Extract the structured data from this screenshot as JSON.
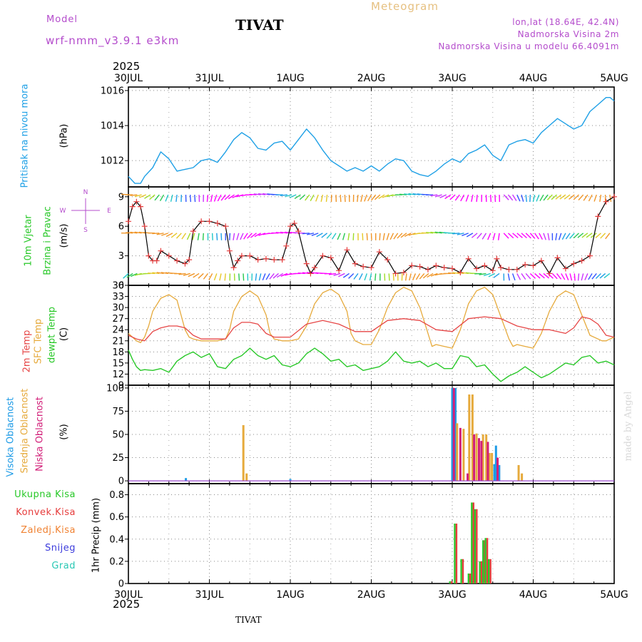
{
  "header": {
    "model_label": "Model",
    "model_name": "wrf-nmm_v3.9.1 e3km",
    "station": "TIVAT",
    "meteogram": "Meteogram",
    "lonlat": "lon,lat (18.64E, 42.4N)",
    "elev": "Nadmorska Visina 2m",
    "elev_model": "Nadmorska Visina u modelu 66.4091m",
    "footer_station": "TIVAT",
    "watermark": "made by Angel",
    "year_top": "2025",
    "year_bottom": "2025"
  },
  "colors": {
    "pressure": "#1ea0e6",
    "temp2m": "#e64646",
    "sfc": "#e6aa3c",
    "dewpt": "#28c828",
    "high": "#1e9be6",
    "mid": "#e6aa3c",
    "low": "#d21e78",
    "total": "#28c828",
    "conv": "#e63c3c",
    "frozen": "#f08232",
    "snow": "#3c3cdc",
    "graupel": "#28c8b4",
    "wind_speed": "#000000",
    "wind_marker": "#e63c3c",
    "label_purple": "#b44ccc"
  },
  "chart_data": [
    {
      "type": "line",
      "title": "Pritisak na nivou mora",
      "ylabel": "(hPa)",
      "x_ticks": [
        "30JUL",
        "31JUL",
        "1AUG",
        "2AUG",
        "3AUG",
        "4AUG",
        "5AUG"
      ],
      "xlim": [
        0,
        6
      ],
      "ylim": [
        1010.5,
        1016.2
      ],
      "yticks": [
        1012,
        1014,
        1016
      ],
      "series": [
        {
          "name": "Pritisak",
          "x": [
            0,
            0.08,
            0.15,
            0.2,
            0.3,
            0.4,
            0.5,
            0.6,
            0.7,
            0.8,
            0.9,
            1.0,
            1.1,
            1.2,
            1.3,
            1.4,
            1.5,
            1.6,
            1.7,
            1.8,
            1.9,
            2.0,
            2.1,
            2.2,
            2.3,
            2.4,
            2.5,
            2.6,
            2.7,
            2.8,
            2.9,
            3.0,
            3.1,
            3.2,
            3.3,
            3.4,
            3.5,
            3.6,
            3.7,
            3.8,
            3.9,
            4.0,
            4.1,
            4.2,
            4.3,
            4.4,
            4.5,
            4.6,
            4.7,
            4.8,
            4.9,
            5.0,
            5.1,
            5.2,
            5.3,
            5.4,
            5.5,
            5.6,
            5.7,
            5.8,
            5.9,
            5.95,
            6.0
          ],
          "values": [
            1011.1,
            1010.7,
            1010.7,
            1011.1,
            1011.6,
            1012.5,
            1012.1,
            1011.4,
            1011.5,
            1011.6,
            1012.0,
            1012.1,
            1011.9,
            1012.5,
            1013.2,
            1013.6,
            1013.3,
            1012.7,
            1012.6,
            1013.0,
            1013.1,
            1012.6,
            1013.2,
            1013.8,
            1013.3,
            1012.6,
            1012.0,
            1011.7,
            1011.4,
            1011.6,
            1011.4,
            1011.7,
            1011.4,
            1011.8,
            1012.1,
            1012.0,
            1011.4,
            1011.2,
            1011.1,
            1011.4,
            1011.8,
            1012.1,
            1011.9,
            1012.4,
            1012.6,
            1012.9,
            1012.3,
            1012.0,
            1012.9,
            1013.1,
            1013.2,
            1013.0,
            1013.6,
            1014.0,
            1014.4,
            1014.1,
            1013.8,
            1014.0,
            1014.8,
            1015.2,
            1015.6,
            1015.6,
            1015.4
          ]
        }
      ]
    },
    {
      "type": "line",
      "title": "10m Vjetar Brzina i Pravac",
      "ylabel": "(m/s)",
      "xlim": [
        0,
        6
      ],
      "ylim": [
        0,
        10
      ],
      "yticks": [
        0,
        3,
        6,
        9
      ],
      "compass": [
        "N",
        "W",
        "E",
        "S"
      ],
      "series": [
        {
          "name": "Brzina",
          "x": [
            0,
            0.05,
            0.1,
            0.15,
            0.2,
            0.25,
            0.3,
            0.35,
            0.4,
            0.5,
            0.6,
            0.7,
            0.75,
            0.8,
            0.9,
            1.0,
            1.1,
            1.2,
            1.25,
            1.3,
            1.35,
            1.4,
            1.5,
            1.6,
            1.7,
            1.8,
            1.9,
            1.95,
            2.0,
            2.05,
            2.1,
            2.2,
            2.25,
            2.3,
            2.4,
            2.5,
            2.6,
            2.7,
            2.8,
            2.9,
            3.0,
            3.1,
            3.2,
            3.3,
            3.4,
            3.5,
            3.6,
            3.7,
            3.8,
            3.9,
            4.0,
            4.1,
            4.2,
            4.3,
            4.4,
            4.5,
            4.55,
            4.6,
            4.7,
            4.8,
            4.9,
            5.0,
            5.1,
            5.2,
            5.3,
            5.4,
            5.5,
            5.6,
            5.7,
            5.8,
            5.9,
            6.0
          ],
          "values": [
            6.5,
            8.0,
            8.5,
            8.0,
            6.0,
            3.0,
            2.5,
            2.5,
            3.5,
            3.0,
            2.5,
            2.2,
            2.6,
            5.5,
            6.5,
            6.5,
            6.3,
            6.0,
            3.5,
            1.8,
            2.5,
            3.0,
            3.0,
            2.6,
            2.7,
            2.6,
            2.6,
            4.0,
            6.0,
            6.3,
            5.5,
            2.2,
            1.2,
            1.8,
            3.0,
            2.8,
            1.5,
            3.6,
            2.2,
            1.9,
            1.8,
            3.4,
            2.6,
            1.2,
            1.3,
            2.0,
            1.9,
            1.6,
            2.0,
            1.8,
            1.7,
            1.3,
            2.7,
            1.7,
            2.0,
            1.5,
            2.7,
            1.8,
            1.6,
            1.6,
            2.1,
            2.0,
            2.5,
            1.2,
            2.8,
            1.7,
            2.2,
            2.5,
            3.0,
            7.0,
            8.5,
            9.0
          ]
        }
      ]
    },
    {
      "type": "line",
      "title": "2m Temp / SFC Temp / dewpt Temp",
      "ylabel": "(C)",
      "xlim": [
        0,
        6
      ],
      "ylim": [
        9,
        36
      ],
      "yticks": [
        9,
        12,
        15,
        18,
        21,
        24,
        27,
        30,
        33,
        36
      ],
      "series": [
        {
          "name": "2m Temp",
          "x": [
            0,
            0.1,
            0.2,
            0.3,
            0.4,
            0.5,
            0.6,
            0.7,
            0.8,
            0.9,
            1.0,
            1.2,
            1.3,
            1.4,
            1.5,
            1.6,
            1.7,
            1.8,
            1.9,
            2.0,
            2.2,
            2.4,
            2.6,
            2.8,
            3.0,
            3.2,
            3.4,
            3.6,
            3.8,
            4.0,
            4.2,
            4.4,
            4.6,
            4.8,
            5.0,
            5.2,
            5.4,
            5.5,
            5.6,
            5.7,
            5.8,
            5.9,
            6.0
          ],
          "values": [
            22.5,
            21.5,
            21.0,
            23.5,
            24.5,
            25.0,
            25.0,
            24.5,
            22.5,
            21.5,
            21.5,
            21.5,
            24.5,
            26.0,
            26.0,
            25.5,
            23.0,
            22.0,
            22.0,
            22.0,
            25.5,
            26.5,
            25.5,
            23.5,
            23.5,
            26.5,
            27.0,
            26.5,
            24.0,
            23.5,
            27.0,
            27.5,
            27.0,
            25.0,
            24.0,
            24.0,
            23.0,
            24.5,
            27.5,
            27.0,
            25.5,
            22.5,
            22.0
          ]
        },
        {
          "name": "SFC Temp",
          "x": [
            0,
            0.1,
            0.15,
            0.2,
            0.25,
            0.3,
            0.4,
            0.5,
            0.6,
            0.65,
            0.7,
            0.75,
            0.8,
            0.9,
            1.0,
            1.1,
            1.2,
            1.25,
            1.3,
            1.4,
            1.5,
            1.6,
            1.7,
            1.75,
            1.8,
            1.9,
            2.0,
            2.1,
            2.2,
            2.3,
            2.4,
            2.5,
            2.6,
            2.7,
            2.75,
            2.8,
            2.9,
            3.0,
            3.1,
            3.2,
            3.3,
            3.4,
            3.5,
            3.6,
            3.7,
            3.75,
            3.8,
            3.9,
            4.0,
            4.1,
            4.2,
            4.3,
            4.4,
            4.5,
            4.6,
            4.7,
            4.75,
            4.8,
            4.9,
            5.0,
            5.1,
            5.2,
            5.3,
            5.4,
            5.5,
            5.6,
            5.7,
            5.8,
            5.85,
            5.9,
            6.0
          ],
          "values": [
            23.0,
            21.0,
            20.5,
            22.0,
            25.0,
            29.0,
            32.5,
            33.5,
            32.0,
            28.0,
            24.0,
            22.0,
            21.5,
            21.0,
            21.0,
            21.0,
            21.5,
            24.0,
            29.0,
            33.0,
            34.5,
            33.0,
            28.0,
            23.0,
            21.5,
            21.0,
            21.0,
            21.5,
            25.0,
            31.0,
            34.0,
            35.0,
            33.5,
            29.0,
            23.0,
            21.0,
            20.0,
            20.0,
            24.0,
            30.0,
            34.0,
            35.5,
            34.5,
            30.0,
            23.0,
            19.5,
            20.0,
            19.5,
            19.0,
            24.0,
            31.0,
            34.5,
            35.5,
            33.5,
            27.5,
            21.5,
            19.5,
            20.0,
            19.5,
            19.0,
            23.0,
            29.0,
            33.0,
            34.5,
            33.5,
            28.0,
            22.5,
            21.5,
            21.0,
            21.0,
            22.0
          ]
        },
        {
          "name": "dewpt Temp",
          "x": [
            0,
            0.05,
            0.1,
            0.15,
            0.2,
            0.3,
            0.4,
            0.5,
            0.6,
            0.7,
            0.8,
            0.9,
            1.0,
            1.1,
            1.2,
            1.3,
            1.4,
            1.5,
            1.6,
            1.7,
            1.8,
            1.9,
            2.0,
            2.1,
            2.2,
            2.3,
            2.4,
            2.5,
            2.6,
            2.7,
            2.8,
            2.9,
            3.0,
            3.1,
            3.2,
            3.3,
            3.4,
            3.5,
            3.6,
            3.7,
            3.8,
            3.9,
            4.0,
            4.1,
            4.2,
            4.3,
            4.4,
            4.5,
            4.6,
            4.7,
            4.8,
            4.9,
            5.0,
            5.1,
            5.2,
            5.3,
            5.4,
            5.5,
            5.6,
            5.7,
            5.8,
            5.9,
            6.0
          ],
          "values": [
            18.5,
            16.0,
            14.0,
            13.0,
            13.2,
            13.0,
            13.5,
            12.5,
            15.5,
            17.0,
            18.0,
            16.5,
            17.5,
            14.0,
            13.5,
            16.0,
            17.0,
            19.0,
            17.0,
            16.0,
            17.0,
            14.5,
            14.0,
            15.0,
            17.5,
            19.0,
            17.5,
            15.5,
            16.0,
            14.0,
            14.5,
            13.0,
            13.5,
            14.0,
            15.5,
            18.0,
            15.5,
            15.0,
            15.5,
            14.0,
            15.0,
            13.5,
            13.5,
            17.0,
            16.5,
            14.0,
            14.5,
            12.0,
            10.0,
            11.5,
            12.5,
            14.0,
            12.5,
            11.0,
            12.0,
            13.5,
            15.0,
            14.5,
            16.5,
            17.0,
            15.0,
            15.5,
            14.5
          ]
        }
      ]
    },
    {
      "type": "bar",
      "title": "Visoka / Srednja / Niska Oblacnost",
      "ylabel": "(%)",
      "xlim": [
        0,
        6
      ],
      "ylim": [
        -3,
        103
      ],
      "yticks": [
        0,
        25,
        50,
        75,
        100
      ],
      "series": [
        {
          "name": "Visoka Oblacnost",
          "x": [
            0.71,
            2.0,
            4.0,
            4.04,
            4.52,
            4.54,
            4.58
          ],
          "values": [
            3,
            2,
            100,
            100,
            18,
            38,
            17
          ]
        },
        {
          "name": "Srednja Oblacnost",
          "x": [
            1.42,
            1.46,
            4.06,
            4.14,
            4.21,
            4.25,
            4.3,
            4.38,
            4.42,
            4.46,
            4.49,
            4.82,
            4.86
          ],
          "values": [
            60,
            8,
            62,
            56,
            93,
            93,
            51,
            50,
            50,
            30,
            30,
            17,
            8
          ]
        },
        {
          "name": "Niska Oblacnost",
          "x": [
            4.02,
            4.1,
            4.19,
            4.27,
            4.33,
            4.36,
            4.44,
            4.56
          ],
          "values": [
            100,
            57,
            8,
            50,
            46,
            43,
            42,
            25
          ]
        }
      ]
    },
    {
      "type": "bar",
      "title": "1hr Precip",
      "ylabel": "(mm)",
      "xlim": [
        0,
        6
      ],
      "ylim": [
        0,
        0.9
      ],
      "yticks": [
        0,
        0.2,
        0.4,
        0.6,
        0.8
      ],
      "legend": [
        "Ukupna Kisa",
        "Konvek.Kisa",
        "Zaledj.Kisa",
        "Snijeg",
        "Grad"
      ],
      "series": [
        {
          "name": "Ukupna Kisa",
          "x": [
            3.98,
            4.04,
            4.12,
            4.21,
            4.25,
            4.29,
            4.35,
            4.39,
            4.42,
            4.46
          ],
          "values": [
            0.02,
            0.54,
            0.22,
            0.09,
            0.73,
            0.67,
            0.2,
            0.39,
            0.41,
            0.22
          ]
        },
        {
          "name": "Konvek.Kisa",
          "x": [
            3.98,
            4.04,
            4.12,
            4.21,
            4.25,
            4.29,
            4.35,
            4.39,
            4.42,
            4.46
          ],
          "values": [
            0.02,
            0.54,
            0.22,
            0.09,
            0.73,
            0.67,
            0.2,
            0.39,
            0.41,
            0.22
          ]
        }
      ]
    }
  ]
}
